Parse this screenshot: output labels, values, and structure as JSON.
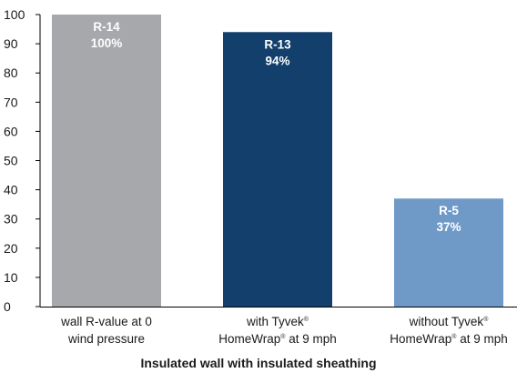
{
  "chart_data": {
    "type": "bar",
    "title": "Insulated wall with insulated sheathing",
    "xlabel": "Insulated wall with insulated sheathing",
    "ylabel": "",
    "ylim": [
      0,
      100
    ],
    "yticks": [
      0,
      10,
      20,
      30,
      40,
      50,
      60,
      70,
      80,
      90,
      100
    ],
    "grid": false,
    "categories": [
      {
        "line1": "wall R-value at 0",
        "line2": "wind pressure"
      },
      {
        "line1": "with Tyvek",
        "line1_sup": "®",
        "line2": "HomeWrap",
        "line2_sup": "®",
        "line2_rest": " at 9 mph"
      },
      {
        "line1": "without Tyvek",
        "line1_sup": "®",
        "line2": "HomeWrap",
        "line2_sup": "®",
        "line2_rest": " at 9 mph"
      }
    ],
    "values": [
      100,
      94,
      37
    ],
    "bar_labels": [
      {
        "rvalue": "R-14",
        "percent": "100%"
      },
      {
        "rvalue": "R-13",
        "percent": "94%"
      },
      {
        "rvalue": "R-5",
        "percent": "37%"
      }
    ],
    "colors": [
      "#a7a8ab",
      "#123f6b",
      "#6f9ac7"
    ]
  }
}
